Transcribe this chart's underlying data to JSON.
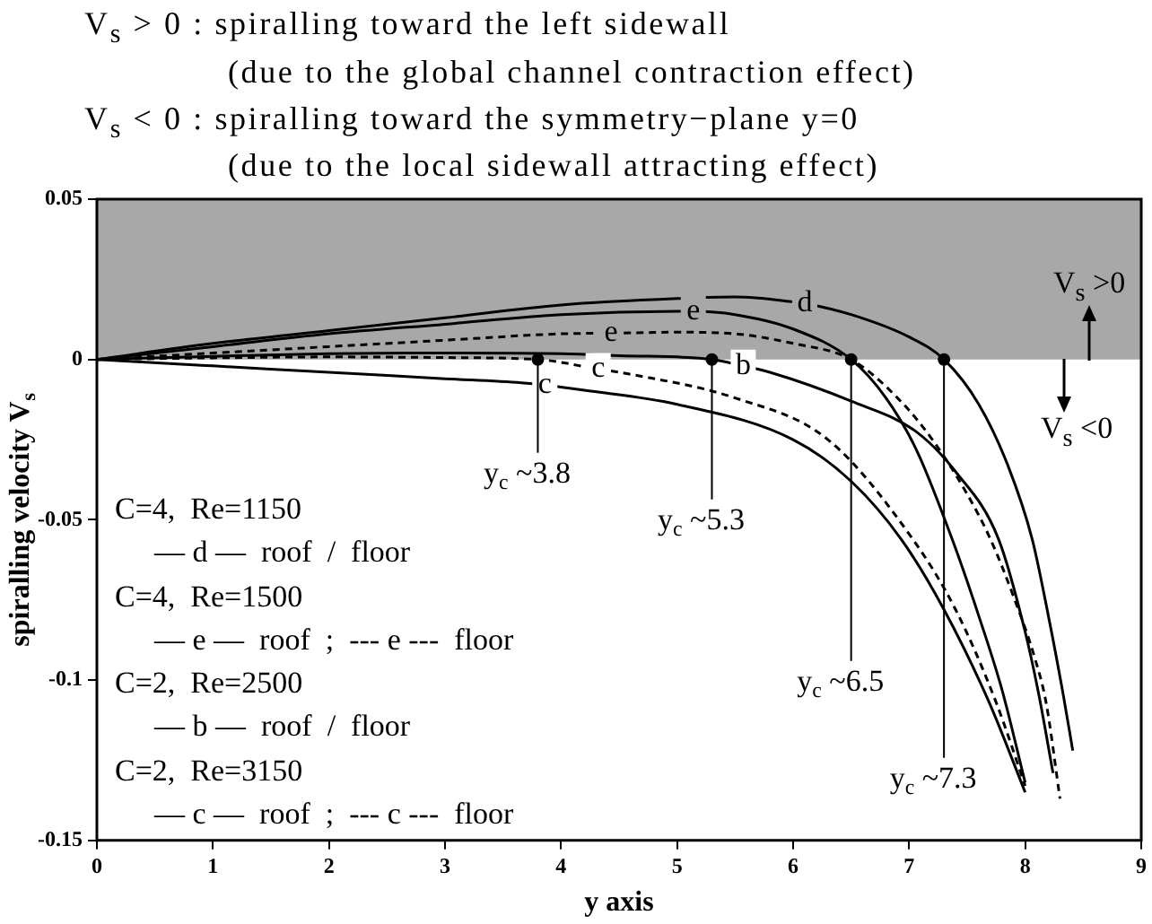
{
  "chart_data": {
    "type": "line",
    "title": "V$_{s}$ > 0 : spiralling toward the left sidewall\n(due to the global channel contraction effect)",
    "subtitle": "V$_{s}$ < 0 : spiralling toward the symmetry−plane y=0\n(due to the local sidewall attracting effect)",
    "xlabel": "y axis",
    "ylabel": "spiralling velocity V$_{s}$",
    "xlim": [
      0,
      9
    ],
    "xticks": [
      0,
      1,
      2,
      3,
      4,
      5,
      6,
      7,
      8,
      9
    ],
    "ylim": [
      -0.15,
      0.05
    ],
    "yticks": [
      -0.15,
      -0.1,
      -0.05,
      0,
      0.05
    ],
    "marker": "none",
    "bands": [
      {
        "axis": "y",
        "from": 0,
        "to": 0.05,
        "color": "#a8a8a8"
      }
    ],
    "series": [
      {
        "color": "#000000",
        "line_style": "solid",
        "x": [
          0,
          1,
          2,
          3,
          4,
          5,
          5.5,
          6,
          6.1,
          6.5,
          7,
          7.3,
          7.6,
          7.85,
          8.06,
          8.2,
          8.33,
          8.41
        ],
        "values": [
          0,
          0.005,
          0.009,
          0.013,
          0.017,
          0.019,
          0.0195,
          0.018,
          0.0175,
          0.014,
          0.007,
          0,
          -0.014,
          -0.033,
          -0.056,
          -0.08,
          -0.105,
          -0.122
        ]
      },
      {
        "color": "#000000",
        "line_style": "solid",
        "x": [
          0,
          1,
          2,
          3,
          4,
          5,
          5.14,
          5.5,
          6,
          6.5,
          6.8,
          7.06,
          7.37,
          7.6,
          7.8,
          8.0
        ],
        "values": [
          0,
          0.004,
          0.008,
          0.011,
          0.014,
          0.015,
          0.015,
          0.014,
          0.0095,
          0,
          -0.012,
          -0.028,
          -0.056,
          -0.08,
          -0.103,
          -0.132
        ]
      },
      {
        "color": "#000000",
        "line_style": "dashed",
        "x": [
          0,
          1,
          2,
          3,
          4,
          4.43,
          5,
          5.5,
          6,
          6.5,
          6.9,
          7.2,
          7.5,
          7.7,
          7.9,
          8.09,
          8.18,
          8.3
        ],
        "values": [
          0,
          0.002,
          0.004,
          0.006,
          0.008,
          0.0082,
          0.0085,
          0.008,
          0.005,
          0,
          -0.012,
          -0.025,
          -0.042,
          -0.056,
          -0.074,
          -0.094,
          -0.107,
          -0.137
        ]
      },
      {
        "color": "#000000",
        "line_style": "solid",
        "x": [
          0,
          1,
          2,
          3,
          4,
          4.5,
          5.3,
          5.57,
          5.8,
          6.5,
          7.06,
          7.4,
          7.77,
          8.0,
          8.12,
          8.24
        ],
        "values": [
          0,
          0.001,
          0.0018,
          0.002,
          0.0018,
          0.0012,
          0,
          -0.002,
          -0.004,
          -0.013,
          -0.0225,
          -0.035,
          -0.056,
          -0.085,
          -0.105,
          -0.129
        ]
      },
      {
        "color": "#000000",
        "line_style": "solid",
        "x": [
          0,
          1,
          2,
          3,
          3.66,
          3.86,
          4.2,
          5,
          6,
          6.5,
          6.93,
          7.3,
          7.69,
          8.0
        ],
        "values": [
          0,
          -0.002,
          -0.004,
          -0.006,
          -0.0073,
          -0.008,
          -0.0096,
          -0.014,
          -0.025,
          -0.038,
          -0.056,
          -0.078,
          -0.107,
          -0.135
        ]
      },
      {
        "color": "#000000",
        "line_style": "dashed",
        "x": [
          0,
          1,
          2,
          3,
          3.8,
          4.32,
          4.58,
          5.5,
          6.3,
          7.03,
          7.4,
          7.75,
          8.0
        ],
        "values": [
          0,
          0.0005,
          0.0008,
          0.0006,
          0,
          -0.003,
          -0.0045,
          -0.012,
          -0.025,
          -0.056,
          -0.078,
          -0.107,
          -0.133
        ]
      },
      {
        "type": "scatter",
        "marker": "circle",
        "color": "#000000",
        "x": [
          3.8,
          5.3,
          6.5,
          7.3
        ],
        "values": [
          0,
          0,
          0,
          0
        ]
      }
    ],
    "annotations": [
      {
        "text": "d",
        "x": 6.1,
        "y": 0.0175
      },
      {
        "text": "e",
        "x": 5.14,
        "y": 0.015
      },
      {
        "text": "e",
        "x": 4.43,
        "y": 0.0082
      },
      {
        "text": "b",
        "x": 5.57,
        "y": -0.002
      },
      {
        "text": "c",
        "x": 3.86,
        "y": -0.008
      },
      {
        "text": "c",
        "x": 4.32,
        "y": -0.003
      },
      {
        "text": "y$_{c}$ ~3.8",
        "x": 3.8,
        "y": 0
      },
      {
        "text": "y$_{c}$ ~5.3",
        "x": 5.3,
        "y": 0
      },
      {
        "text": "y$_{c}$ ~6.5",
        "x": 6.5,
        "y": 0
      },
      {
        "text": "y$_{c}$ ~7.3",
        "x": 7.3,
        "y": 0
      },
      "V$_{s}$ >0",
      "V$_{s}$ <0",
      "C=4,  Re=1150",
      "— d —  roof  /  floor",
      "C=4,  Re=1500",
      "— e —  roof  ;  --- e ---  floor",
      "C=2,  Re=2500",
      "— b —  roof  /  floor",
      "C=2,  Re=3150",
      "— c —  roof  ;  --- c ---  floor"
    ]
  }
}
